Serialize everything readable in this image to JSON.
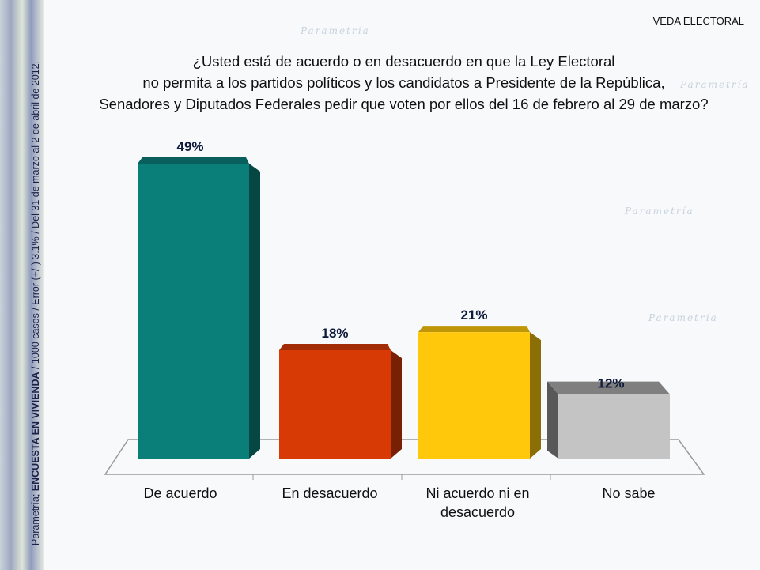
{
  "header": {
    "tag": "VEDA ELECTORAL"
  },
  "sidebar": {
    "source_prefix": "Parametría; ",
    "source_bold": "ENCUESTA EN VIVIENDA",
    "source_rest": " / 1000 casos / Error (+/-) 3.1% / Del 31 de marzo al 2 de abril de 2012."
  },
  "watermark": "Parametría",
  "chart_data": {
    "type": "bar",
    "title_lines": [
      "¿Usted está de acuerdo o en desacuerdo en que la Ley Electoral",
      "no permita a los partidos políticos y los candidatos a Presidente de la República,",
      "Senadores y Diputados Federales pedir que voten por ellos del 16 de febrero al 29 de marzo?"
    ],
    "categories": [
      "De acuerdo",
      "En desacuerdo",
      "Ni acuerdo ni en desacuerdo",
      "No sabe"
    ],
    "category_lines": [
      [
        "De acuerdo"
      ],
      [
        "En desacuerdo"
      ],
      [
        "Ni acuerdo ni en",
        "desacuerdo"
      ],
      [
        "No sabe"
      ]
    ],
    "values": [
      49,
      18,
      21,
      12
    ],
    "labels": [
      "49%",
      "18%",
      "21%",
      "12%"
    ],
    "colors": [
      "#0a7f7a",
      "#d83a06",
      "#ffc80a",
      "#c4c4c4"
    ],
    "ylim": [
      0,
      50
    ],
    "style": "3d-column",
    "grid": false
  }
}
